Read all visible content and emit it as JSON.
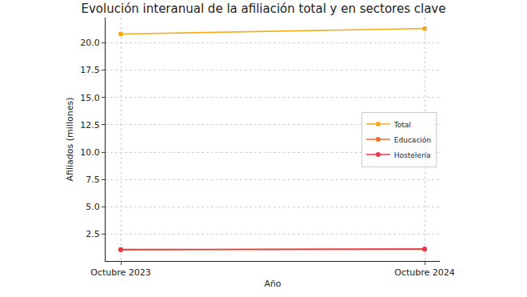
{
  "chart_data": {
    "type": "line",
    "title": "Evolución interanual de la afiliación total y en sectores clave",
    "x_label": "Año",
    "y_label": "Afiliados (millones)",
    "categories": [
      "Octubre 2023",
      "Octubre 2024"
    ],
    "series": [
      {
        "name": "Total",
        "color": "#f2ac1f",
        "values": [
          20.8,
          21.3
        ],
        "marker": "circle"
      },
      {
        "name": "Educación",
        "color": "#f26b2e",
        "values": [
          1.08,
          1.12
        ],
        "marker": "circle"
      },
      {
        "name": "Hostelería",
        "color": "#e8384f",
        "values": [
          1.1,
          1.14
        ],
        "marker": "circle"
      }
    ],
    "ylim": [
      0.05,
      22.3
    ],
    "yticks": [
      {
        "value": 2.5,
        "label": "2.5"
      },
      {
        "value": 5,
        "label": "5.0"
      },
      {
        "value": 7.5,
        "label": "7.5"
      },
      {
        "value": 10,
        "label": "10.0"
      },
      {
        "value": 12.5,
        "label": "12.5"
      },
      {
        "value": 15,
        "label": "15.0"
      },
      {
        "value": 17.5,
        "label": "17.5"
      },
      {
        "value": 20,
        "label": "20.0"
      }
    ],
    "grid": true,
    "legend": "right"
  }
}
